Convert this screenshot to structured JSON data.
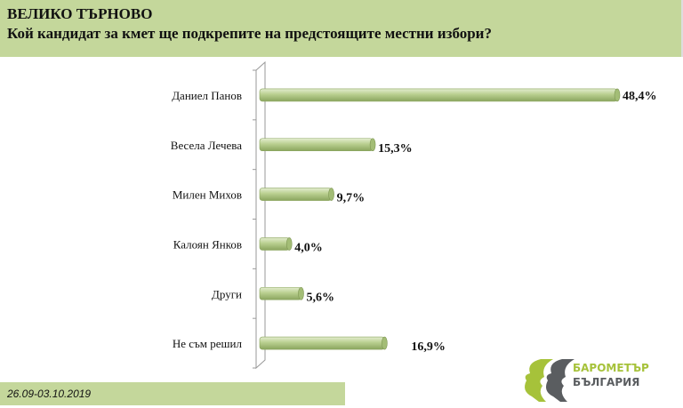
{
  "header": {
    "region": "ВЕЛИКО ТЪРНОВО",
    "question": "Кой кандидат за кмет ще подкрепите на предстоящите местни избори?"
  },
  "footer": {
    "date": "26.09-03.10.2019"
  },
  "logo": {
    "line1": "БАРОМЕТЪР",
    "line2": "БЪЛГАРИЯ"
  },
  "colors": {
    "header_bg": "#c4d79b",
    "bar": "#b5cc8a",
    "bar_dark": "#8aa55e"
  },
  "chart_data": {
    "type": "bar",
    "orientation": "horizontal",
    "title": "Кой кандидат за кмет ще подкрепите на предстоящите местни избори?",
    "categories": [
      "Даниел Панов",
      "Весела Лечева",
      "Милен Михов",
      "Калоян Янков",
      "Други",
      "Не съм решил"
    ],
    "values": [
      48.4,
      15.3,
      9.7,
      4.0,
      5.6,
      16.9
    ],
    "labels": [
      "48,4%",
      "15,3%",
      "9,7%",
      "4,0%",
      "5,6%",
      "16,9%"
    ],
    "xlim": [
      0,
      48.4
    ],
    "grid": false,
    "legend": "none"
  }
}
